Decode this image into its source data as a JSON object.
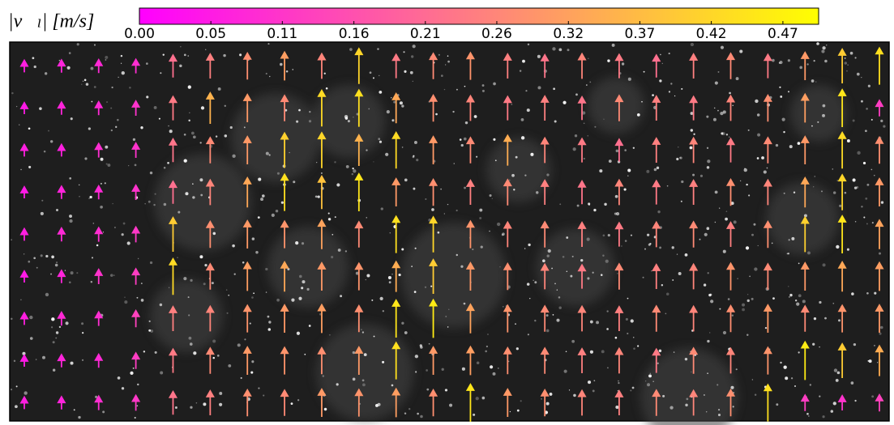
{
  "chart_data": {
    "type": "quiver",
    "colorbar_label": "|v⃗ₗ| [m/s]",
    "colors": [
      "#ff00ff",
      "#ffff00"
    ],
    "clim": [
      0,
      0.5
    ],
    "cticks": [
      {
        "value": 0,
        "label": "0.00"
      },
      {
        "value": 0.0526,
        "label": "0.05"
      },
      {
        "value": 0.1052,
        "label": "0.11"
      },
      {
        "value": 0.1579,
        "label": "0.16"
      },
      {
        "value": 0.2105,
        "label": "0.21"
      },
      {
        "value": 0.2631,
        "label": "0.26"
      },
      {
        "value": 0.3158,
        "label": "0.32"
      },
      {
        "value": 0.3684,
        "label": "0.37"
      },
      {
        "value": 0.421,
        "label": "0.42"
      },
      {
        "value": 0.4737,
        "label": "0.47"
      }
    ],
    "speeds": [
      [
        0.06,
        0.07,
        0.08,
        0.09,
        0.22,
        0.25,
        0.28,
        0.31,
        0.26,
        0.42,
        0.24,
        0.27,
        0.29,
        0.25,
        0.23,
        0.26,
        0.24,
        0.22,
        0.25,
        0.27,
        0.24,
        0.3,
        0.4,
        0.44
      ],
      [
        0.05,
        0.07,
        0.08,
        0.1,
        0.24,
        0.35,
        0.3,
        0.27,
        0.43,
        0.44,
        0.33,
        0.28,
        0.26,
        0.24,
        0.25,
        0.23,
        0.27,
        0.25,
        0.24,
        0.26,
        0.28,
        0.31,
        0.45,
        0.12
      ],
      [
        0.06,
        0.06,
        0.09,
        0.1,
        0.23,
        0.27,
        0.3,
        0.41,
        0.42,
        0.35,
        0.43,
        0.3,
        0.27,
        0.34,
        0.26,
        0.24,
        0.22,
        0.25,
        0.26,
        0.24,
        0.27,
        0.3,
        0.43,
        0.28
      ],
      [
        0.05,
        0.07,
        0.08,
        0.1,
        0.22,
        0.26,
        0.33,
        0.44,
        0.38,
        0.45,
        0.3,
        0.28,
        0.25,
        0.27,
        0.25,
        0.23,
        0.26,
        0.24,
        0.25,
        0.28,
        0.26,
        0.33,
        0.42,
        0.3
      ],
      [
        0.06,
        0.08,
        0.09,
        0.11,
        0.4,
        0.28,
        0.3,
        0.29,
        0.32,
        0.27,
        0.44,
        0.42,
        0.29,
        0.26,
        0.27,
        0.25,
        0.24,
        0.26,
        0.27,
        0.25,
        0.28,
        0.41,
        0.45,
        0.32
      ],
      [
        0.05,
        0.07,
        0.1,
        0.12,
        0.43,
        0.27,
        0.31,
        0.33,
        0.3,
        0.29,
        0.34,
        0.4,
        0.3,
        0.28,
        0.26,
        0.24,
        0.27,
        0.25,
        0.26,
        0.29,
        0.27,
        0.3,
        0.33,
        0.31
      ],
      [
        0.06,
        0.08,
        0.09,
        0.13,
        0.25,
        0.26,
        0.29,
        0.3,
        0.31,
        0.28,
        0.45,
        0.46,
        0.32,
        0.29,
        0.27,
        0.26,
        0.25,
        0.27,
        0.26,
        0.28,
        0.3,
        0.27,
        0.29,
        0.3
      ],
      [
        0.05,
        0.07,
        0.08,
        0.12,
        0.24,
        0.27,
        0.3,
        0.29,
        0.28,
        0.3,
        0.44,
        0.3,
        0.31,
        0.28,
        0.27,
        0.25,
        0.26,
        0.24,
        0.27,
        0.26,
        0.29,
        0.46,
        0.4,
        0.34
      ],
      [
        0.06,
        0.07,
        0.09,
        0.11,
        0.23,
        0.25,
        0.28,
        0.27,
        0.3,
        0.29,
        0.31,
        0.28,
        0.45,
        0.3,
        0.28,
        0.26,
        0.25,
        0.27,
        0.26,
        0.28,
        0.44,
        0.12,
        0.1,
        0.13
      ]
    ]
  }
}
